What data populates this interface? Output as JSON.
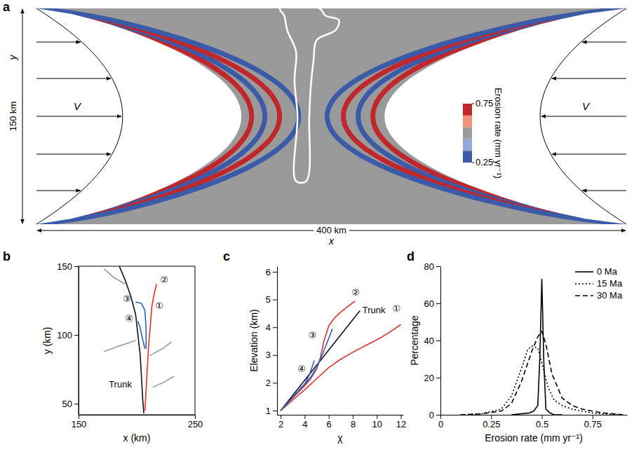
{
  "chart_data": [
    {
      "panel": "a",
      "type": "field",
      "xlabel": "x",
      "ylabel": "y",
      "x_extent_label": "400 km",
      "y_extent_label": "150 km",
      "xlim": [
        0,
        400
      ],
      "ylim": [
        0,
        150
      ],
      "velocity_label": "V",
      "domain_apex": [
        139,
        236
      ],
      "background_rate": 0.5,
      "colorbar": {
        "title": "Erosion rate (mm yr⁻¹)",
        "range": [
          0.25,
          0.75
        ],
        "ticks": [
          0.75,
          0.25
        ],
        "colors": [
          "#3b5ba9",
          "#8fa8d8",
          "#9a9a9a",
          "#f2927a",
          "#c0272d"
        ]
      },
      "stripes": [
        {
          "side": "left",
          "apex": 146,
          "rate": 0.72
        },
        {
          "side": "left",
          "apex": 155,
          "rate": 0.3
        },
        {
          "side": "left",
          "apex": 165,
          "rate": 0.7
        },
        {
          "side": "left",
          "apex": 178,
          "rate": 0.28
        },
        {
          "side": "right",
          "apex": 228,
          "rate": 0.72
        },
        {
          "side": "right",
          "apex": 218,
          "rate": 0.3
        },
        {
          "side": "right",
          "apex": 208,
          "rate": 0.7
        },
        {
          "side": "right",
          "apex": 197,
          "rate": 0.28
        }
      ],
      "basin_outline": [
        [
          165,
          150
        ],
        [
          192,
          150
        ],
        [
          196,
          145
        ],
        [
          205,
          142
        ],
        [
          203,
          135
        ],
        [
          190,
          128
        ],
        [
          188,
          115
        ],
        [
          186,
          95
        ],
        [
          185,
          75
        ],
        [
          183,
          30
        ],
        [
          176,
          30
        ],
        [
          177,
          75
        ],
        [
          175,
          100
        ],
        [
          176,
          120
        ],
        [
          170,
          135
        ],
        [
          168,
          145
        ]
      ]
    },
    {
      "panel": "b",
      "type": "line",
      "xlabel": "x (km)",
      "ylabel": "y (km)",
      "xlim": [
        150,
        250
      ],
      "ylim": [
        42,
        150
      ],
      "xticks": [
        150,
        250
      ],
      "yticks": [
        50,
        100,
        150
      ],
      "series": [
        {
          "color": "#9a9a9a",
          "x": [
            172,
            180,
            190
          ],
          "values": [
            148,
            142,
            137
          ]
        },
        {
          "color": "#9a9a9a",
          "x": [
            172,
            185,
            199
          ],
          "values": [
            88,
            92,
            96
          ]
        },
        {
          "color": "#9a9a9a",
          "x": [
            230,
            222,
            211
          ],
          "values": [
            95,
            90,
            85
          ]
        },
        {
          "color": "#9a9a9a",
          "x": [
            232,
            224,
            214
          ],
          "values": [
            70,
            66,
            62
          ]
        },
        {
          "color": "#111111",
          "x": [
            185,
            190,
            195,
            199,
            201,
            203,
            204,
            205,
            206
          ],
          "values": [
            150,
            140,
            128,
            115,
            100,
            85,
            70,
            55,
            43
          ]
        },
        {
          "color": "#e0302a",
          "x": [
            213,
            212,
            211,
            210,
            209,
            208,
            207
          ],
          "values": [
            121,
            110,
            100,
            90,
            75,
            60,
            45
          ]
        },
        {
          "color": "#e0302a",
          "x": [
            217,
            215,
            213
          ],
          "values": [
            137,
            130,
            121
          ]
        },
        {
          "color": "#2a5fbf",
          "x": [
            199,
            204,
            207,
            208,
            208
          ],
          "values": [
            124,
            123,
            118,
            105,
            90
          ]
        },
        {
          "color": "#2a5fbf",
          "x": [
            201,
            203,
            205,
            207
          ],
          "values": [
            110,
            105,
            97,
            90
          ]
        }
      ],
      "annotations": [
        {
          "text": "①",
          "x": 216,
          "y": 119
        },
        {
          "text": "②",
          "x": 220,
          "y": 138
        },
        {
          "text": "③",
          "x": 188,
          "y": 124
        },
        {
          "text": "④",
          "x": 190,
          "y": 110
        },
        {
          "text": "Trunk",
          "x": 176,
          "y": 62
        }
      ]
    },
    {
      "panel": "c",
      "type": "line",
      "xlabel": "χ",
      "ylabel": "Elevation (km)",
      "xlim": [
        1.7,
        12.2
      ],
      "ylim": [
        0.85,
        6.2
      ],
      "xticks": [
        2,
        4,
        6,
        8,
        10,
        12
      ],
      "yticks": [
        1,
        2,
        3,
        4,
        5,
        6
      ],
      "series": [
        {
          "color": "#111111",
          "x": [
            2,
            8.6
          ],
          "values": [
            1,
            4.6
          ]
        },
        {
          "color": "#e0302a",
          "x": [
            2,
            3,
            4,
            5,
            6,
            7,
            8,
            9,
            10,
            10.8,
            12
          ],
          "values": [
            1,
            1.38,
            1.75,
            2.15,
            2.55,
            2.85,
            3.1,
            3.33,
            3.55,
            3.75,
            4.1
          ]
        },
        {
          "color": "#e0302a",
          "x": [
            2,
            3,
            4,
            4.5,
            5,
            5.3,
            5.6,
            6,
            6.5,
            7,
            7.5,
            8.2
          ],
          "values": [
            1,
            1.45,
            1.9,
            2.15,
            2.5,
            2.9,
            3.5,
            4.05,
            4.35,
            4.55,
            4.72,
            4.95
          ]
        },
        {
          "color": "#2a5fbf",
          "x": [
            2,
            3,
            4,
            4.5,
            5,
            5.5,
            6,
            6.3
          ],
          "values": [
            1,
            1.48,
            1.95,
            2.2,
            2.55,
            3.05,
            3.6,
            3.95
          ]
        },
        {
          "color": "#2a5fbf",
          "x": [
            2,
            3,
            4,
            4.4,
            4.8
          ],
          "values": [
            1,
            1.48,
            1.95,
            2.3,
            2.8
          ]
        }
      ],
      "annotations": [
        {
          "text": "①",
          "x": 11.3,
          "y": 4.55
        },
        {
          "text": "②",
          "x": 7.9,
          "y": 5.15
        },
        {
          "text": "③",
          "x": 4.3,
          "y": 3.6
        },
        {
          "text": "④",
          "x": 3.4,
          "y": 2.4
        },
        {
          "text": "Trunk",
          "x": 8.8,
          "y": 4.5
        }
      ]
    },
    {
      "panel": "d",
      "type": "line",
      "xlabel": "Erosion rate (mm yr⁻¹)",
      "ylabel": "Percentage",
      "xlim": [
        0,
        0.92
      ],
      "ylim": [
        0,
        80
      ],
      "xticks": [
        0,
        0.25,
        0.5,
        0.75
      ],
      "yticks": [
        0,
        20,
        40,
        60,
        80
      ],
      "legend": "top-right",
      "series": [
        {
          "name": "0 Ma",
          "color": "#000000",
          "line_style": "solid",
          "x": [
            0.35,
            0.44,
            0.46,
            0.48,
            0.49,
            0.5,
            0.51,
            0.52,
            0.54,
            0.56,
            0.6
          ],
          "values": [
            0,
            1,
            2,
            5,
            30,
            73,
            28,
            3,
            1,
            0,
            0
          ]
        },
        {
          "name": "15 Ma",
          "color": "#000000",
          "line_style": "dotted",
          "x": [
            0.1,
            0.2,
            0.3,
            0.35,
            0.4,
            0.43,
            0.45,
            0.48,
            0.5,
            0.53,
            0.56,
            0.6,
            0.65,
            0.7,
            0.75,
            0.8,
            0.9
          ],
          "values": [
            0,
            0.5,
            3,
            10,
            25,
            35,
            37,
            36,
            28,
            15,
            8,
            5,
            3,
            2,
            1,
            0.5,
            0
          ]
        },
        {
          "name": "30 Ma",
          "color": "#000000",
          "line_style": "dashed",
          "x": [
            0.1,
            0.2,
            0.3,
            0.35,
            0.4,
            0.45,
            0.48,
            0.5,
            0.52,
            0.55,
            0.6,
            0.65,
            0.7,
            0.75,
            0.8,
            0.9
          ],
          "values": [
            0,
            0.5,
            2,
            6,
            18,
            34,
            42,
            45,
            38,
            22,
            9,
            5,
            3,
            2,
            1,
            0
          ]
        }
      ]
    }
  ]
}
